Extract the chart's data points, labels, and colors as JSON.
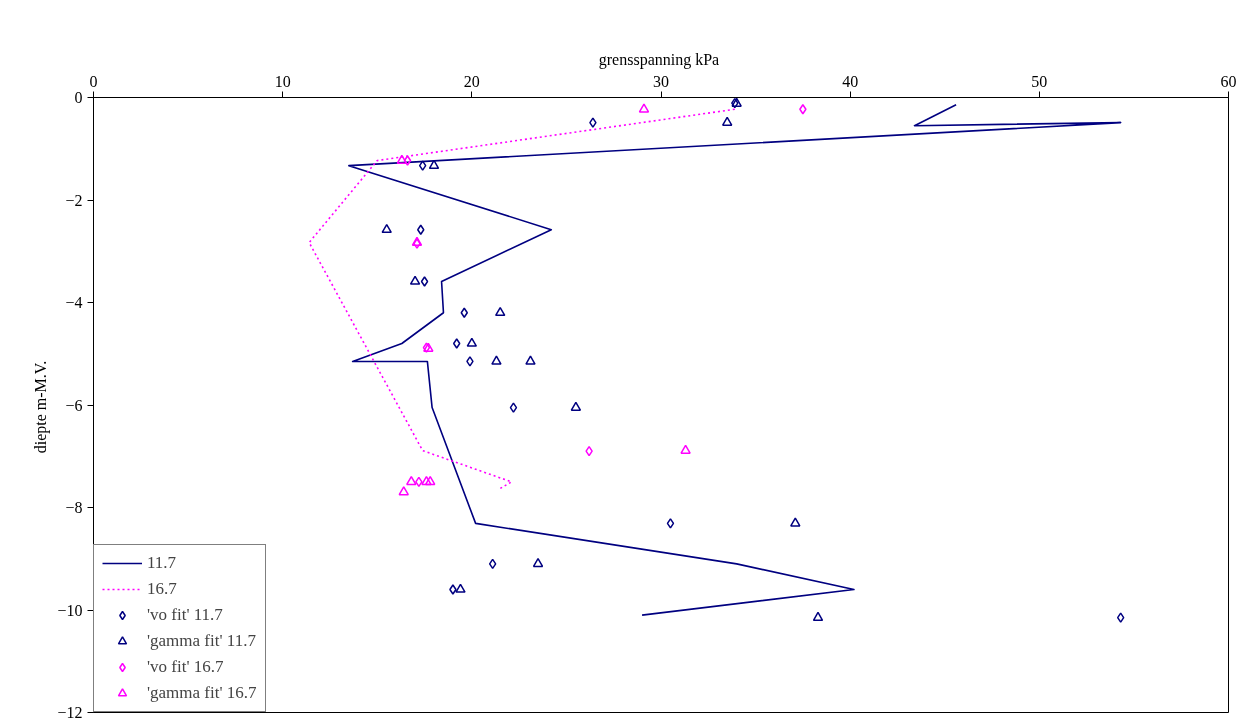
{
  "chart_data": {
    "type": "line",
    "xlabel": "grensspanning  kPa",
    "ylabel": "diepte  m-M.V.",
    "xlim": [
      0,
      60
    ],
    "xticks": [
      0,
      10,
      20,
      30,
      40,
      50,
      60
    ],
    "ylim": [
      -12,
      0
    ],
    "yticks": [
      -12,
      -10,
      -8,
      -6,
      -4,
      -2,
      0
    ],
    "grid": false,
    "legend": "bottom left",
    "series": [
      {
        "name": "11.7",
        "color": "#000080",
        "line_style": "solid",
        "x": [
          45.6,
          43.4,
          54.3,
          13.5,
          24.2,
          18.4,
          18.5,
          16.3,
          13.7,
          17.65,
          17.9,
          20.2,
          34.0,
          40.2,
          29.0
        ],
        "values": [
          -0.14,
          -0.55,
          -0.49,
          -1.33,
          -2.58,
          -3.59,
          -4.2,
          -4.8,
          -5.15,
          -5.15,
          -6.05,
          -8.31,
          -9.1,
          -9.6,
          -10.1
        ]
      },
      {
        "name": "16.7",
        "color": "#ff00ff",
        "line_style": "dotted",
        "x": [
          33.9,
          15.0,
          11.4,
          17.4,
          22.1,
          21.4
        ],
        "values": [
          -0.23,
          -1.23,
          -2.83,
          -6.89,
          -7.5,
          -7.65
        ]
      },
      {
        "name": "'vo fit' 11.7",
        "type": "scatter",
        "color": "#000080",
        "marker": "diamond",
        "x": [
          33.9,
          26.4,
          17.4,
          17.3,
          17.5,
          19.6,
          19.2,
          19.9,
          22.2,
          30.5,
          21.1,
          19.0,
          54.3
        ],
        "values": [
          -0.11,
          -0.49,
          -1.33,
          -2.58,
          -3.59,
          -4.2,
          -4.8,
          -5.15,
          -6.05,
          -8.31,
          -9.1,
          -9.6,
          -10.15
        ]
      },
      {
        "name": "'gamma fit' 11.7",
        "type": "scatter",
        "color": "#000080",
        "marker": "triangle",
        "x": [
          34.0,
          33.5,
          18.0,
          15.5,
          17.0,
          21.5,
          20.0,
          21.3,
          23.1,
          25.5,
          37.1,
          23.5,
          19.4,
          38.3
        ],
        "values": [
          -0.12,
          -0.49,
          -1.33,
          -2.58,
          -3.59,
          -4.2,
          -4.8,
          -5.15,
          -5.15,
          -6.05,
          -8.31,
          -9.1,
          -9.6,
          -10.15
        ]
      },
      {
        "name": "'vo fit' 16.7",
        "type": "scatter",
        "color": "#ff00ff",
        "marker": "diamond",
        "x": [
          37.5,
          16.6,
          17.1,
          17.6,
          26.2,
          17.2
        ],
        "values": [
          -0.23,
          -1.23,
          -2.85,
          -4.88,
          -6.9,
          -7.5
        ]
      },
      {
        "name": "'gamma fit' 16.7",
        "type": "scatter",
        "color": "#ff00ff",
        "marker": "triangle",
        "x": [
          29.1,
          16.3,
          17.1,
          17.7,
          31.3,
          16.8,
          17.6,
          17.8,
          16.4
        ],
        "values": [
          -0.23,
          -1.23,
          -2.83,
          -4.9,
          -6.89,
          -7.5,
          -7.5,
          -7.5,
          -7.7
        ]
      }
    ]
  }
}
